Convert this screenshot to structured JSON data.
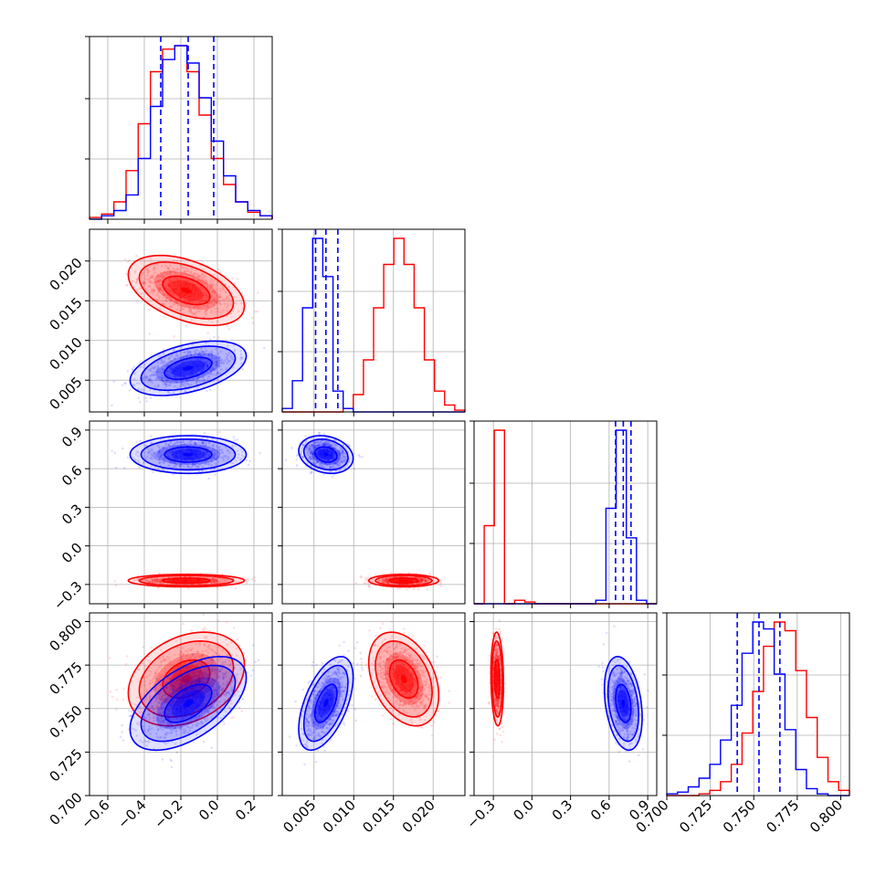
{
  "chart_data": {
    "type": "corner",
    "parameters": [
      {
        "range": [
          -0.7,
          0.3
        ],
        "ticks": [
          -0.6,
          -0.4,
          -0.2,
          0.0,
          0.2
        ],
        "tick_labels": [
          "−0.6",
          "−0.4",
          "−0.2",
          "0.0",
          "0.2"
        ]
      },
      {
        "range": [
          0.001,
          0.024
        ],
        "ticks": [
          0.005,
          0.01,
          0.015,
          0.02
        ],
        "tick_labels": [
          "0.005",
          "0.010",
          "0.015",
          "0.020"
        ]
      },
      {
        "range": [
          -0.45,
          0.97
        ],
        "ticks": [
          -0.3,
          0.0,
          0.3,
          0.6,
          0.9
        ],
        "tick_labels": [
          "−0.3",
          "0.0",
          "0.3",
          "0.6",
          "0.9"
        ]
      },
      {
        "range": [
          0.7,
          0.805
        ],
        "ticks": [
          0.7,
          0.725,
          0.75,
          0.775,
          0.8
        ],
        "tick_labels": [
          "0.700",
          "0.725",
          "0.750",
          "0.775",
          "0.800"
        ]
      }
    ],
    "series": [
      {
        "color": "#ff0000",
        "mean": [
          -0.17,
          0.0163,
          -0.27,
          0.767
        ],
        "sd": [
          0.13,
          0.0018,
          0.02,
          0.011
        ],
        "corr": [
          [
            1,
            -0.45,
            0,
            0.3
          ],
          [
            -0.45,
            1,
            0,
            -0.35
          ],
          [
            0,
            0,
            1,
            -0.1
          ],
          [
            0.3,
            -0.35,
            -0.1,
            1
          ]
        ],
        "hist": [
          [
            0.01,
            0.03,
            0.1,
            0.28,
            0.55,
            0.85,
            0.98,
            1.0,
            0.85,
            0.6,
            0.35,
            0.2,
            0.1,
            0.04,
            0.02
          ],
          [
            0,
            0,
            0,
            0,
            0,
            0,
            0.02,
            0.1,
            0.3,
            0.6,
            0.85,
            1.0,
            0.85,
            0.6,
            0.3,
            0.12,
            0.04,
            0.01
          ],
          [
            0,
            0.45,
            1.0,
            0,
            0.02,
            0.01,
            0,
            0,
            0,
            0,
            0,
            0,
            0,
            0,
            0,
            0,
            0,
            0
          ],
          [
            0,
            0,
            0,
            0.01,
            0.03,
            0.08,
            0.18,
            0.36,
            0.6,
            0.86,
            1.0,
            0.95,
            0.72,
            0.45,
            0.22,
            0.08,
            0.03
          ]
        ],
        "quantile_lines": []
      },
      {
        "color": "#0000ff",
        "mean": [
          -0.16,
          0.0065,
          0.71,
          0.753
        ],
        "sd": [
          0.13,
          0.0014,
          0.06,
          0.011
        ],
        "corr": [
          [
            1,
            0.45,
            0,
            0.55
          ],
          [
            0.45,
            1,
            -0.2,
            0.55
          ],
          [
            0,
            -0.2,
            1,
            -0.3
          ],
          [
            0.55,
            0.55,
            -0.3,
            1
          ]
        ],
        "hist": [
          [
            0,
            0.02,
            0.05,
            0.14,
            0.35,
            0.65,
            0.92,
            1.0,
            0.9,
            0.7,
            0.45,
            0.25,
            0.1,
            0.05,
            0.02
          ],
          [
            0.02,
            0.18,
            0.6,
            1.0,
            0.78,
            0.12,
            0.02,
            0,
            0,
            0,
            0,
            0,
            0,
            0,
            0,
            0,
            0,
            0
          ],
          [
            0,
            0,
            0,
            0,
            0,
            0,
            0,
            0,
            0,
            0,
            0,
            0,
            0.02,
            0.55,
            1.0,
            0.38,
            0.02,
            0
          ],
          [
            0.01,
            0.02,
            0.05,
            0.1,
            0.18,
            0.32,
            0.52,
            0.82,
            1.0,
            0.96,
            0.7,
            0.38,
            0.15,
            0.04,
            0.01,
            0,
            0
          ]
        ],
        "quantile_lines": [
          [
            -0.31,
            -0.16,
            -0.02
          ],
          [
            0.0052,
            0.0065,
            0.008
          ],
          [
            0.65,
            0.71,
            0.77
          ],
          [
            0.7405,
            0.753,
            0.765
          ]
        ]
      }
    ],
    "grid": true,
    "xlabel": "",
    "ylabel": "",
    "title": ""
  }
}
